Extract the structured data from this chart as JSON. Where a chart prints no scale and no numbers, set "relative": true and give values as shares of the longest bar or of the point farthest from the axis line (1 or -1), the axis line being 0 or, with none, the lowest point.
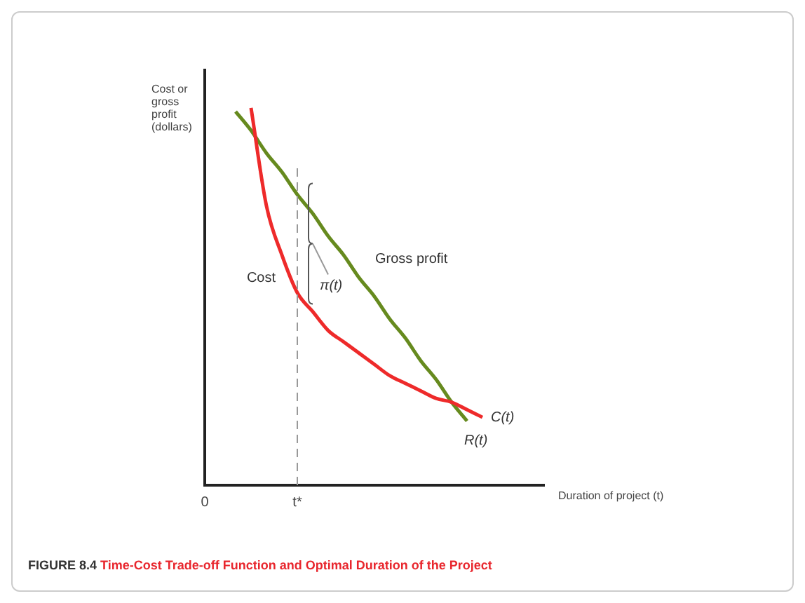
{
  "chart_data": {
    "type": "line",
    "title": "Time-Cost Trade-off Function and Optimal Duration of the Project",
    "xlabel": "Duration of project (t)",
    "ylabel": "Cost or gross profit (dollars)",
    "categories": [
      "0",
      null,
      null,
      null,
      null,
      null,
      "t*",
      null,
      null,
      null,
      null,
      null,
      null,
      null,
      null,
      null,
      null,
      null,
      null,
      null,
      null,
      null,
      null
    ],
    "relative": true,
    "series": [
      {
        "name": "Cost",
        "color": "#ee2a2a",
        "values": [
          null,
          null,
          null,
          1.0,
          0.74,
          0.61,
          0.51,
          0.46,
          0.41,
          0.38,
          0.35,
          0.32,
          0.29,
          0.27,
          0.25,
          0.23,
          0.22,
          0.2,
          0.18,
          null,
          null,
          null,
          null
        ]
      },
      {
        "name": "Gross profit",
        "color": "#668a1e",
        "values": [
          null,
          null,
          0.99,
          0.94,
          0.88,
          0.83,
          0.77,
          0.72,
          0.66,
          0.61,
          0.55,
          0.5,
          0.44,
          0.39,
          0.33,
          0.28,
          0.22,
          0.17,
          null,
          null,
          null,
          null,
          null
        ]
      }
    ],
    "ref_lines": [
      {
        "axis": "x",
        "value": "t*",
        "color": "#999999",
        "line_style": "dashed"
      }
    ],
    "annotations": [
      "FIGURE 8.4",
      "π(t)",
      "C(t)",
      "R(t)"
    ],
    "grid": false,
    "legend": false,
    "marker": "none",
    "line_style": "solid"
  }
}
